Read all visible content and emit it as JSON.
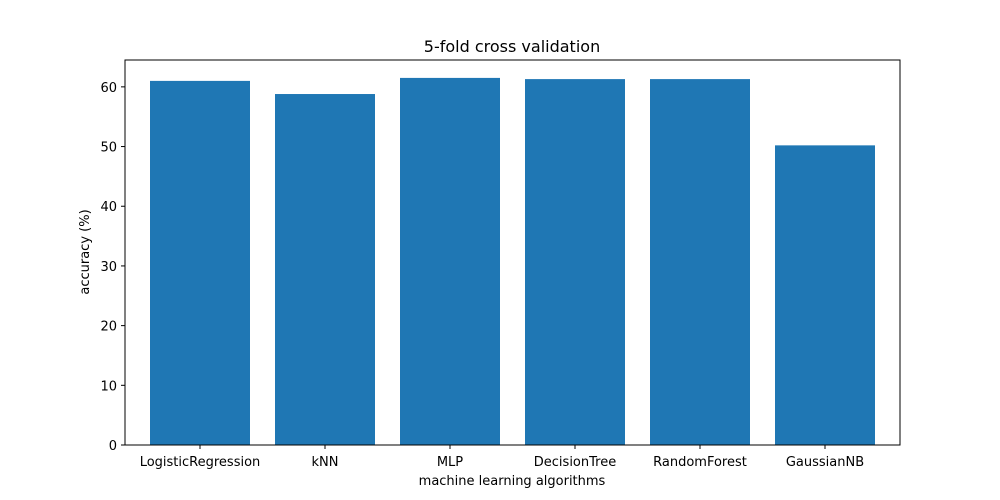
{
  "chart_data": {
    "type": "bar",
    "title": "5-fold cross validation",
    "xlabel": "machine learning algorithms",
    "ylabel": "accuracy (%)",
    "categories": [
      "LogisticRegression",
      "kNN",
      "MLP",
      "DecisionTree",
      "RandomForest",
      "GaussianNB"
    ],
    "values": [
      61.0,
      58.8,
      61.5,
      61.3,
      61.3,
      50.2
    ],
    "yticks": [
      0,
      10,
      20,
      30,
      40,
      50,
      60
    ],
    "ylim": [
      0,
      64.5
    ],
    "bar_color": "#1f77b4",
    "grid": false,
    "legend": "none"
  }
}
